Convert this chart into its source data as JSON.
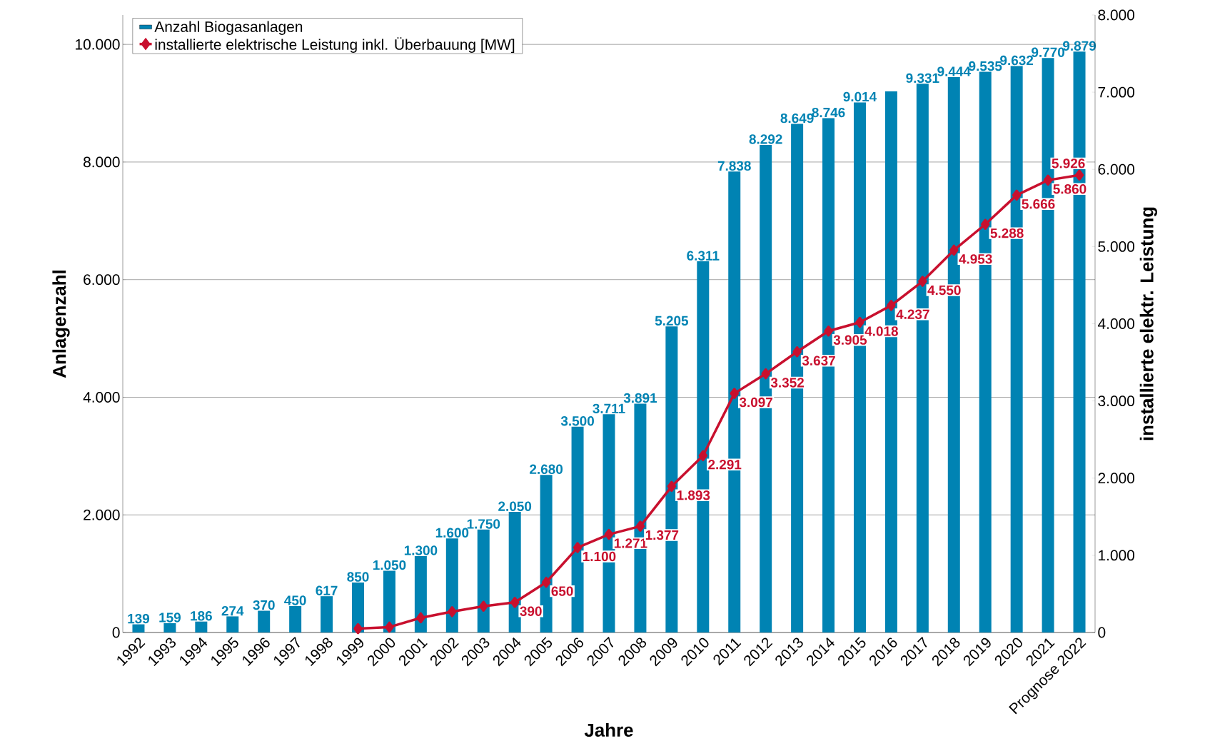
{
  "chart_data": {
    "type": "bar",
    "xlabel": "Jahre",
    "ylabel": "Anlagenzahl",
    "y2label": "installierte elektr. Leistung",
    "categories": [
      "1992",
      "1993",
      "1994",
      "1995",
      "1996",
      "1997",
      "1998",
      "1999",
      "2000",
      "2001",
      "2002",
      "2003",
      "2004",
      "2005",
      "2006",
      "2007",
      "2008",
      "2009",
      "2010",
      "2011",
      "2012",
      "2013",
      "2014",
      "2015",
      "2016",
      "2017",
      "2018",
      "2019",
      "2020",
      "2021",
      "Prognose 2022"
    ],
    "series": [
      {
        "name": "Anzahl Biogasanlagen",
        "color": "#0083b3",
        "values": [
          139,
          159,
          186,
          274,
          370,
          450,
          617,
          850,
          1050,
          1300,
          1600,
          1750,
          2050,
          2680,
          3500,
          3711,
          3891,
          5205,
          6311,
          7838,
          8292,
          8649,
          8746,
          9014,
          9200,
          9331,
          9444,
          9535,
          9632,
          9770,
          9879
        ],
        "value_labels": [
          "139",
          "159",
          "186",
          "274",
          "370",
          "450",
          "617",
          "850",
          "1.050",
          "1.300",
          "1.600",
          "1.750",
          "2.050",
          "2.680",
          "3.500",
          "3.711",
          "3.891",
          "5.205",
          "6.311",
          "7.838",
          "8.292",
          "8.649",
          "8.746",
          "9.014",
          null,
          "9.331",
          "9.444",
          "9.535",
          "9.632",
          "9.770",
          "9.879"
        ]
      },
      {
        "name": "installierte elektrische Leistung inkl. Überbauung [MW]",
        "type": "line",
        "axis": "y2",
        "marker": "diamond",
        "color": "#c8102e",
        "values": [
          null,
          null,
          null,
          null,
          null,
          null,
          null,
          50,
          70,
          190,
          270,
          340,
          390,
          650,
          1100,
          1271,
          1377,
          1893,
          2291,
          3097,
          3352,
          3637,
          3905,
          4018,
          4237,
          4550,
          4953,
          5288,
          5666,
          5860,
          5926
        ],
        "value_labels": [
          null,
          null,
          null,
          null,
          null,
          null,
          null,
          null,
          null,
          null,
          null,
          null,
          "390",
          "650",
          "1.100",
          "1.271",
          "1.377",
          "1.893",
          "2.291",
          "3.097",
          "3.352",
          "3.637",
          "3.905",
          "4.018",
          "4.237",
          "4.550",
          "4.953",
          "5.288",
          "5.666",
          "5.860",
          "5.926"
        ]
      }
    ],
    "ylim": [
      0,
      10500
    ],
    "yticks": [
      {
        "value": 0,
        "label": "0"
      },
      {
        "value": 2000,
        "label": "2.000"
      },
      {
        "value": 4000,
        "label": "4.000"
      },
      {
        "value": 6000,
        "label": "6.000"
      },
      {
        "value": 8000,
        "label": "8.000"
      },
      {
        "value": 10000,
        "label": "10.000"
      }
    ],
    "y2lim": [
      0,
      8000
    ],
    "y2ticks": [
      {
        "value": 0,
        "label": "0"
      },
      {
        "value": 1000,
        "label": "1.000"
      },
      {
        "value": 2000,
        "label": "2.000"
      },
      {
        "value": 3000,
        "label": "3.000"
      },
      {
        "value": 4000,
        "label": "4.000"
      },
      {
        "value": 5000,
        "label": "5.000"
      },
      {
        "value": 6000,
        "label": "6.000"
      },
      {
        "value": 7000,
        "label": "7.000"
      },
      {
        "value": 8000,
        "label": "8.000"
      }
    ],
    "grid": "y",
    "legend": "top left"
  }
}
